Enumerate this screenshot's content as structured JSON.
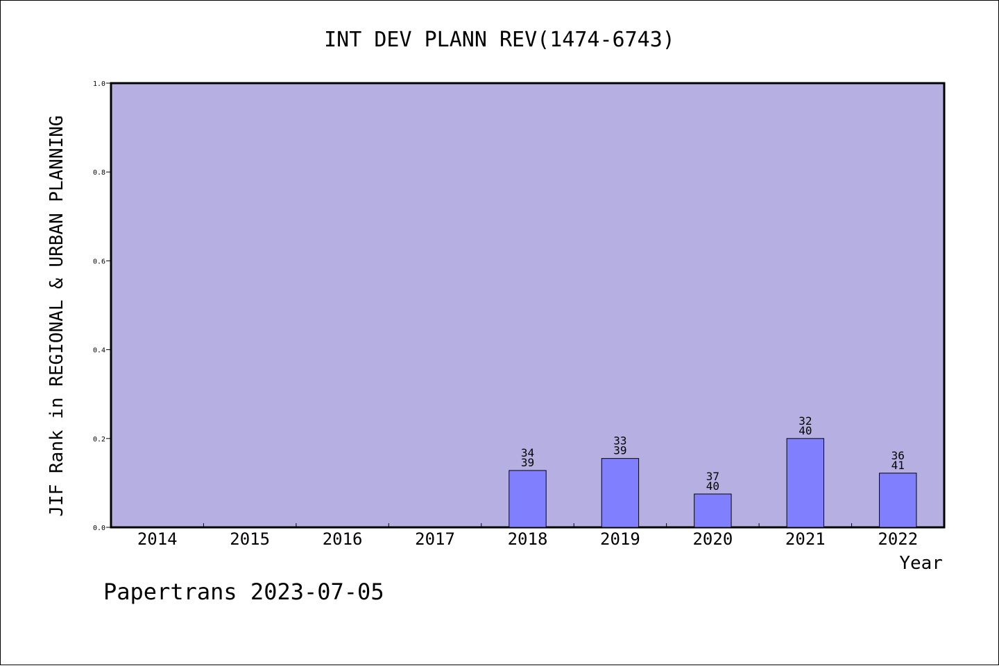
{
  "chart_data": {
    "type": "bar",
    "title": "INT DEV PLANN REV(1474-6743)",
    "xlabel": "Year",
    "ylabel": "JIF Rank in REGIONAL & URBAN PLANNING",
    "ylim": [
      0,
      1.0
    ],
    "yticks": [
      "0.0",
      "0.2",
      "0.4",
      "0.6",
      "0.8",
      "1.0"
    ],
    "categories": [
      "2014",
      "2015",
      "2016",
      "2017",
      "2018",
      "2019",
      "2020",
      "2021",
      "2022"
    ],
    "values": [
      null,
      null,
      null,
      null,
      0.128,
      0.155,
      0.075,
      0.2,
      0.122
    ],
    "rank": [
      null,
      null,
      null,
      null,
      "34",
      "33",
      "37",
      "32",
      "36"
    ],
    "total": [
      null,
      null,
      null,
      null,
      "39",
      "39",
      "40",
      "40",
      "41"
    ],
    "grid": false,
    "colors": {
      "plot_bg": "#b6b0e2",
      "bar": "#8080ff",
      "axis": "#000000"
    }
  },
  "footer": {
    "watermark": "Papertrans 2023-07-05"
  }
}
